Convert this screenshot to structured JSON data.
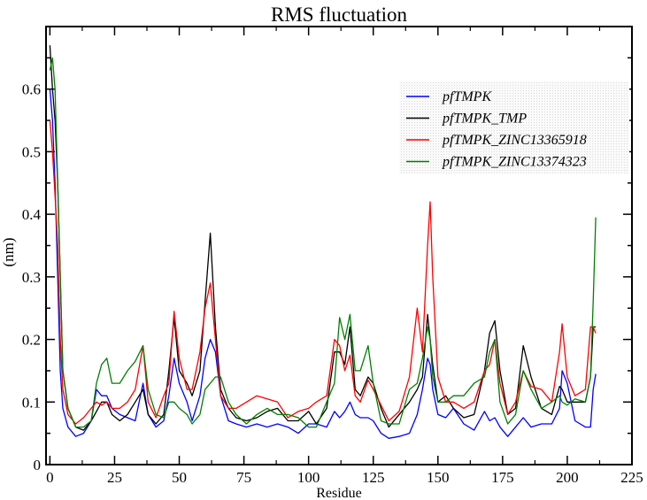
{
  "chart_data": {
    "type": "line",
    "title": "RMS fluctuation",
    "xlabel": "Residue",
    "ylabel": "(nm)",
    "xlim": [
      -1.5,
      225
    ],
    "ylim": [
      0,
      0.7
    ],
    "xticks": [
      0,
      25,
      50,
      75,
      100,
      125,
      150,
      175,
      200,
      225
    ],
    "yticks": [
      0,
      0.1,
      0.2,
      0.3,
      0.4,
      0.5,
      0.6
    ],
    "grid": false,
    "legend_position": "top-right",
    "x": [
      0,
      1,
      2,
      3,
      4,
      5,
      7,
      10,
      13,
      16,
      18,
      20,
      22,
      24,
      27,
      30,
      33,
      36,
      38,
      41,
      44,
      46,
      48,
      50,
      53,
      55,
      58,
      60,
      62,
      64,
      66,
      69,
      72,
      76,
      80,
      84,
      88,
      92,
      96,
      100,
      103,
      107,
      110,
      112,
      114,
      116,
      118,
      120,
      123,
      125,
      128,
      131,
      135,
      139,
      142,
      144,
      146,
      147,
      148,
      150,
      153,
      156,
      160,
      164,
      168,
      170,
      172,
      174,
      177,
      180,
      183,
      186,
      190,
      194,
      197,
      198,
      200,
      203,
      207,
      209,
      210,
      211
    ],
    "series": [
      {
        "name": "pfTMPK",
        "color": "#0000ff",
        "values": [
          0.6,
          0.55,
          0.45,
          0.3,
          0.15,
          0.09,
          0.06,
          0.045,
          0.05,
          0.07,
          0.12,
          0.11,
          0.11,
          0.09,
          0.08,
          0.075,
          0.07,
          0.13,
          0.08,
          0.06,
          0.07,
          0.11,
          0.17,
          0.13,
          0.1,
          0.07,
          0.11,
          0.17,
          0.2,
          0.18,
          0.11,
          0.07,
          0.065,
          0.06,
          0.065,
          0.06,
          0.065,
          0.06,
          0.05,
          0.065,
          0.065,
          0.06,
          0.085,
          0.075,
          0.085,
          0.1,
          0.08,
          0.075,
          0.075,
          0.07,
          0.05,
          0.042,
          0.045,
          0.05,
          0.08,
          0.12,
          0.17,
          0.16,
          0.12,
          0.08,
          0.075,
          0.09,
          0.065,
          0.055,
          0.085,
          0.07,
          0.075,
          0.06,
          0.045,
          0.06,
          0.075,
          0.06,
          0.065,
          0.065,
          0.09,
          0.15,
          0.13,
          0.07,
          0.06,
          0.06,
          0.12,
          0.145
        ]
      },
      {
        "name": "pfTMPK_TMP",
        "color": "#000000",
        "values": [
          0.67,
          0.6,
          0.55,
          0.45,
          0.3,
          0.15,
          0.09,
          0.06,
          0.055,
          0.07,
          0.085,
          0.1,
          0.1,
          0.08,
          0.07,
          0.08,
          0.1,
          0.12,
          0.08,
          0.065,
          0.08,
          0.15,
          0.235,
          0.15,
          0.13,
          0.11,
          0.15,
          0.26,
          0.37,
          0.22,
          0.12,
          0.09,
          0.075,
          0.07,
          0.075,
          0.085,
          0.09,
          0.07,
          0.07,
          0.085,
          0.065,
          0.09,
          0.18,
          0.18,
          0.16,
          0.22,
          0.12,
          0.11,
          0.14,
          0.13,
          0.09,
          0.06,
          0.08,
          0.1,
          0.12,
          0.14,
          0.24,
          0.2,
          0.16,
          0.1,
          0.11,
          0.09,
          0.075,
          0.08,
          0.15,
          0.21,
          0.23,
          0.15,
          0.08,
          0.09,
          0.19,
          0.14,
          0.09,
          0.08,
          0.125,
          0.12,
          0.1,
          0.1,
          0.1,
          0.14,
          0.22,
          0.22
        ]
      },
      {
        "name": "pfTMPK_ZINC13365918",
        "color": "#ff0000",
        "values": [
          0.55,
          0.5,
          0.43,
          0.35,
          0.2,
          0.12,
          0.08,
          0.065,
          0.075,
          0.09,
          0.1,
          0.095,
          0.1,
          0.09,
          0.09,
          0.1,
          0.12,
          0.19,
          0.1,
          0.075,
          0.11,
          0.13,
          0.245,
          0.17,
          0.12,
          0.12,
          0.18,
          0.25,
          0.29,
          0.2,
          0.11,
          0.09,
          0.09,
          0.1,
          0.11,
          0.105,
          0.1,
          0.075,
          0.085,
          0.09,
          0.1,
          0.11,
          0.2,
          0.19,
          0.15,
          0.175,
          0.11,
          0.1,
          0.135,
          0.12,
          0.095,
          0.07,
          0.085,
          0.14,
          0.25,
          0.18,
          0.35,
          0.42,
          0.3,
          0.14,
          0.1,
          0.1,
          0.09,
          0.1,
          0.15,
          0.16,
          0.2,
          0.13,
          0.08,
          0.1,
          0.15,
          0.125,
          0.12,
          0.1,
          0.18,
          0.225,
          0.14,
          0.11,
          0.12,
          0.22,
          0.22,
          0.21
        ]
      },
      {
        "name": "pfTMPK_ZINC13374323",
        "color": "#008000",
        "values": [
          0.63,
          0.65,
          0.6,
          0.45,
          0.3,
          0.15,
          0.09,
          0.06,
          0.06,
          0.07,
          0.13,
          0.16,
          0.17,
          0.13,
          0.13,
          0.15,
          0.165,
          0.19,
          0.12,
          0.08,
          0.075,
          0.1,
          0.1,
          0.09,
          0.08,
          0.065,
          0.08,
          0.12,
          0.13,
          0.14,
          0.14,
          0.1,
          0.08,
          0.065,
          0.08,
          0.09,
          0.08,
          0.08,
          0.075,
          0.06,
          0.06,
          0.1,
          0.13,
          0.235,
          0.2,
          0.24,
          0.15,
          0.15,
          0.19,
          0.13,
          0.07,
          0.065,
          0.065,
          0.12,
          0.13,
          0.17,
          0.22,
          0.2,
          0.14,
          0.1,
          0.1,
          0.11,
          0.11,
          0.13,
          0.14,
          0.18,
          0.2,
          0.1,
          0.065,
          0.08,
          0.15,
          0.12,
          0.09,
          0.1,
          0.11,
          0.1,
          0.095,
          0.105,
          0.1,
          0.14,
          0.26,
          0.395
        ]
      }
    ]
  }
}
